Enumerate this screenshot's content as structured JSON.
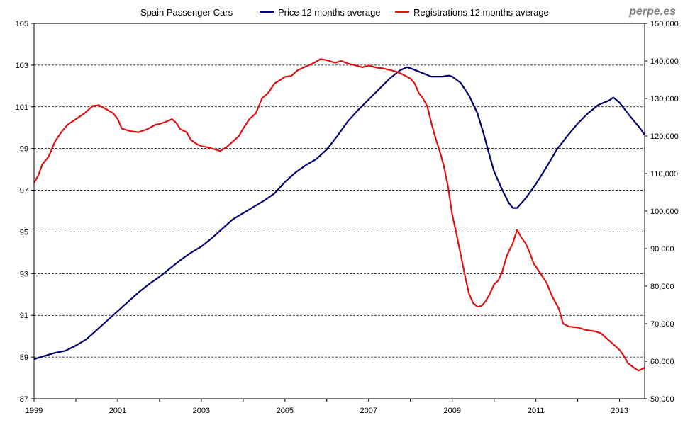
{
  "chart_data": {
    "type": "line",
    "title": "Spain Passenger Cars",
    "brand": "perpe.es",
    "xlim": [
      1999,
      2013.6
    ],
    "x_ticks": [
      1999,
      2001,
      2003,
      2005,
      2007,
      2009,
      2011,
      2013
    ],
    "x_tick_labels": [
      "1999",
      "2001",
      "2003",
      "2005",
      "2007",
      "2009",
      "2011",
      "2013"
    ],
    "y_left": {
      "lim": [
        87,
        105
      ],
      "ticks": [
        87,
        89,
        91,
        93,
        95,
        97,
        99,
        101,
        103,
        105
      ],
      "tick_labels": [
        "87",
        "89",
        "91",
        "93",
        "95",
        "97",
        "99",
        "101",
        "103",
        "105"
      ]
    },
    "y_right": {
      "lim": [
        50000,
        150000
      ],
      "ticks": [
        50000,
        60000,
        70000,
        80000,
        90000,
        100000,
        110000,
        120000,
        130000,
        140000,
        150000
      ],
      "tick_labels": [
        "50,000",
        "60,000",
        "70,000",
        "80,000",
        "90,000",
        "100,000",
        "110,000",
        "120,000",
        "130,000",
        "140,000",
        "150,000"
      ]
    },
    "grid": {
      "horizontal": true,
      "style": "dashed"
    },
    "legend_position": "top",
    "series": [
      {
        "name": "Price 12 months average",
        "axis": "left",
        "color": "#00006e",
        "points": [
          [
            1999.0,
            88.9
          ],
          [
            1999.25,
            89.05
          ],
          [
            1999.5,
            89.2
          ],
          [
            1999.75,
            89.3
          ],
          [
            2000.0,
            89.55
          ],
          [
            2000.25,
            89.85
          ],
          [
            2000.5,
            90.3
          ],
          [
            2000.75,
            90.75
          ],
          [
            2001.0,
            91.2
          ],
          [
            2001.25,
            91.65
          ],
          [
            2001.5,
            92.1
          ],
          [
            2001.75,
            92.5
          ],
          [
            2002.0,
            92.85
          ],
          [
            2002.25,
            93.25
          ],
          [
            2002.5,
            93.65
          ],
          [
            2002.75,
            94.0
          ],
          [
            2003.0,
            94.3
          ],
          [
            2003.25,
            94.7
          ],
          [
            2003.5,
            95.15
          ],
          [
            2003.75,
            95.6
          ],
          [
            2004.0,
            95.9
          ],
          [
            2004.25,
            96.2
          ],
          [
            2004.5,
            96.5
          ],
          [
            2004.75,
            96.85
          ],
          [
            2005.0,
            97.4
          ],
          [
            2005.25,
            97.85
          ],
          [
            2005.5,
            98.2
          ],
          [
            2005.75,
            98.5
          ],
          [
            2006.0,
            98.95
          ],
          [
            2006.25,
            99.6
          ],
          [
            2006.5,
            100.3
          ],
          [
            2006.75,
            100.85
          ],
          [
            2007.0,
            101.35
          ],
          [
            2007.25,
            101.85
          ],
          [
            2007.5,
            102.35
          ],
          [
            2007.75,
            102.75
          ],
          [
            2007.92,
            102.9
          ],
          [
            2008.0,
            102.85
          ],
          [
            2008.25,
            102.65
          ],
          [
            2008.5,
            102.45
          ],
          [
            2008.75,
            102.45
          ],
          [
            2008.92,
            102.5
          ],
          [
            2009.0,
            102.45
          ],
          [
            2009.2,
            102.15
          ],
          [
            2009.4,
            101.55
          ],
          [
            2009.6,
            100.7
          ],
          [
            2009.75,
            99.7
          ],
          [
            2009.9,
            98.6
          ],
          [
            2010.0,
            97.9
          ],
          [
            2010.2,
            97.0
          ],
          [
            2010.35,
            96.4
          ],
          [
            2010.45,
            96.15
          ],
          [
            2010.55,
            96.15
          ],
          [
            2010.75,
            96.6
          ],
          [
            2011.0,
            97.3
          ],
          [
            2011.25,
            98.1
          ],
          [
            2011.5,
            98.95
          ],
          [
            2011.75,
            99.6
          ],
          [
            2012.0,
            100.2
          ],
          [
            2012.25,
            100.7
          ],
          [
            2012.5,
            101.1
          ],
          [
            2012.75,
            101.3
          ],
          [
            2012.85,
            101.45
          ],
          [
            2013.0,
            101.2
          ],
          [
            2013.25,
            100.55
          ],
          [
            2013.5,
            99.95
          ],
          [
            2013.6,
            99.65
          ]
        ]
      },
      {
        "name": "Registrations 12 months average",
        "axis": "right",
        "color": "#e01010",
        "points": [
          [
            1999.0,
            107500
          ],
          [
            1999.1,
            109500
          ],
          [
            1999.2,
            112500
          ],
          [
            1999.35,
            114500
          ],
          [
            1999.5,
            118500
          ],
          [
            1999.65,
            121000
          ],
          [
            1999.8,
            123000
          ],
          [
            2000.0,
            124500
          ],
          [
            2000.2,
            126000
          ],
          [
            2000.4,
            128000
          ],
          [
            2000.55,
            128200
          ],
          [
            2000.75,
            127000
          ],
          [
            2000.9,
            126000
          ],
          [
            2001.0,
            124500
          ],
          [
            2001.1,
            122000
          ],
          [
            2001.3,
            121300
          ],
          [
            2001.5,
            121000
          ],
          [
            2001.7,
            121800
          ],
          [
            2001.9,
            123000
          ],
          [
            2002.0,
            123200
          ],
          [
            2002.15,
            123800
          ],
          [
            2002.3,
            124500
          ],
          [
            2002.4,
            123500
          ],
          [
            2002.5,
            121800
          ],
          [
            2002.65,
            121000
          ],
          [
            2002.75,
            119000
          ],
          [
            2002.9,
            117800
          ],
          [
            2003.0,
            117300
          ],
          [
            2003.15,
            117000
          ],
          [
            2003.3,
            116500
          ],
          [
            2003.45,
            116000
          ],
          [
            2003.6,
            117000
          ],
          [
            2003.75,
            118500
          ],
          [
            2003.9,
            120000
          ],
          [
            2004.0,
            122000
          ],
          [
            2004.15,
            124500
          ],
          [
            2004.3,
            126000
          ],
          [
            2004.45,
            130000
          ],
          [
            2004.6,
            131500
          ],
          [
            2004.75,
            134000
          ],
          [
            2004.9,
            135000
          ],
          [
            2005.0,
            135800
          ],
          [
            2005.15,
            136000
          ],
          [
            2005.3,
            137500
          ],
          [
            2005.5,
            138500
          ],
          [
            2005.7,
            139500
          ],
          [
            2005.85,
            140500
          ],
          [
            2006.0,
            140200
          ],
          [
            2006.2,
            139500
          ],
          [
            2006.35,
            140000
          ],
          [
            2006.5,
            139300
          ],
          [
            2006.7,
            138800
          ],
          [
            2006.85,
            138300
          ],
          [
            2007.0,
            138800
          ],
          [
            2007.2,
            138200
          ],
          [
            2007.35,
            138000
          ],
          [
            2007.5,
            137600
          ],
          [
            2007.65,
            137200
          ],
          [
            2007.8,
            136500
          ],
          [
            2007.92,
            135800
          ],
          [
            2008.0,
            135300
          ],
          [
            2008.1,
            134000
          ],
          [
            2008.2,
            131500
          ],
          [
            2008.3,
            130000
          ],
          [
            2008.4,
            128000
          ],
          [
            2008.5,
            123500
          ],
          [
            2008.6,
            119500
          ],
          [
            2008.7,
            116000
          ],
          [
            2008.8,
            112000
          ],
          [
            2008.9,
            106500
          ],
          [
            2009.0,
            99000
          ],
          [
            2009.1,
            94000
          ],
          [
            2009.2,
            88500
          ],
          [
            2009.3,
            83000
          ],
          [
            2009.4,
            78000
          ],
          [
            2009.5,
            75500
          ],
          [
            2009.6,
            74500
          ],
          [
            2009.7,
            74700
          ],
          [
            2009.8,
            76000
          ],
          [
            2009.9,
            78000
          ],
          [
            2010.0,
            80500
          ],
          [
            2010.1,
            81500
          ],
          [
            2010.2,
            84000
          ],
          [
            2010.3,
            88000
          ],
          [
            2010.45,
            91500
          ],
          [
            2010.55,
            95000
          ],
          [
            2010.65,
            93000
          ],
          [
            2010.75,
            91500
          ],
          [
            2010.85,
            89000
          ],
          [
            2010.95,
            86000
          ],
          [
            2011.1,
            83500
          ],
          [
            2011.25,
            81000
          ],
          [
            2011.4,
            77000
          ],
          [
            2011.55,
            74000
          ],
          [
            2011.65,
            70000
          ],
          [
            2011.8,
            69200
          ],
          [
            2012.0,
            69000
          ],
          [
            2012.2,
            68300
          ],
          [
            2012.4,
            68000
          ],
          [
            2012.55,
            67500
          ],
          [
            2012.7,
            66000
          ],
          [
            2012.85,
            64500
          ],
          [
            2013.0,
            63000
          ],
          [
            2013.1,
            61500
          ],
          [
            2013.2,
            59500
          ],
          [
            2013.35,
            58200
          ],
          [
            2013.45,
            57500
          ],
          [
            2013.55,
            58000
          ],
          [
            2013.6,
            58300
          ]
        ]
      }
    ]
  }
}
